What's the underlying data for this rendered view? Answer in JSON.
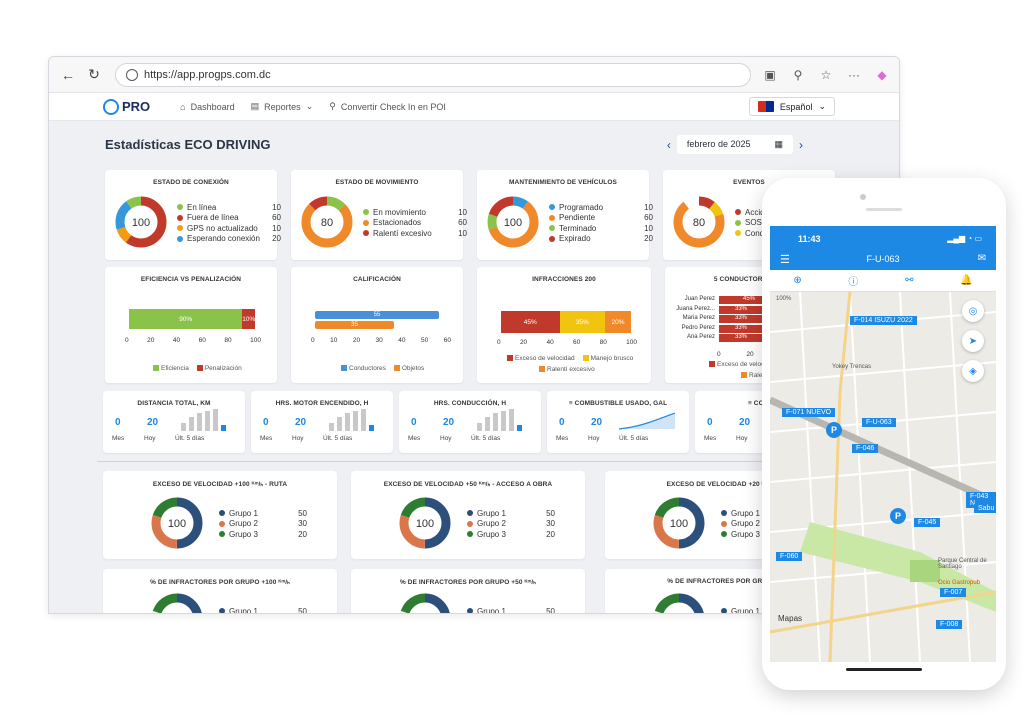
{
  "browser": {
    "url": "https://app.progps.com.dc"
  },
  "appbar": {
    "logo": "PRO",
    "menu": [
      "Dashboard",
      "Reportes",
      "Convertir Check In en POI"
    ],
    "language": "Español"
  },
  "page": {
    "title": "Estadísticas ECO DRIVING",
    "date": "febrero de 2025"
  },
  "donut_cards": [
    {
      "title": "ESTADO DE CONEXIÓN",
      "center": "100",
      "items": [
        {
          "label": "En línea",
          "value": "10",
          "color": "#8bc34a"
        },
        {
          "label": "Fuera de línea",
          "value": "60",
          "color": "#c0392b"
        },
        {
          "label": "GPS no actualizado",
          "value": "10",
          "color": "#f39c12"
        },
        {
          "label": "Esperando conexión",
          "value": "20",
          "color": "#3498db"
        }
      ]
    },
    {
      "title": "ESTADO DE MOVIMIENTO",
      "center": "80",
      "items": [
        {
          "label": "En movimiento",
          "value": "10",
          "color": "#8bc34a"
        },
        {
          "label": "Estacionados",
          "value": "60",
          "color": "#f0892a"
        },
        {
          "label": "Ralentí excesivo",
          "value": "10",
          "color": "#c0392b"
        }
      ]
    },
    {
      "title": "MANTENIMIENTO DE VEHÍCULOS",
      "center": "100",
      "items": [
        {
          "label": "Programado",
          "value": "10",
          "color": "#3498db"
        },
        {
          "label": "Pendiente",
          "value": "60",
          "color": "#f0892a"
        },
        {
          "label": "Terminado",
          "value": "10",
          "color": "#8bc34a"
        },
        {
          "label": "Expirado",
          "value": "20",
          "color": "#c0392b"
        }
      ]
    },
    {
      "title": "EVENTOS",
      "center": "80",
      "items": [
        {
          "label": "Accide",
          "value": "",
          "color": "#c0392b"
        },
        {
          "label": "SOS",
          "value": "",
          "color": "#8bc34a"
        },
        {
          "label": "Condu",
          "value": "",
          "color": "#f1c40f"
        }
      ]
    }
  ],
  "eficiencia": {
    "title": "EFICIENCIA VS PENALIZACIÓN",
    "bar_labels": [
      "90%",
      "10%"
    ],
    "axis": [
      "0",
      "20",
      "40",
      "60",
      "80",
      "100"
    ],
    "legend": [
      "Eficiencia",
      "Penalización"
    ]
  },
  "calificacion": {
    "title": "CALIFICACIÓN",
    "bar_labels": [
      "55",
      "35"
    ],
    "axis": [
      "0",
      "10",
      "20",
      "30",
      "40",
      "50",
      "60"
    ],
    "legend": [
      "Conductores",
      "Objetos"
    ]
  },
  "infracciones": {
    "title": "INFRACCIONES 200",
    "bar_labels": [
      "45%",
      "35%",
      "20%"
    ],
    "axis": [
      "0",
      "20",
      "40",
      "60",
      "80",
      "100"
    ],
    "legend": [
      "Exceso de velocidad",
      "Manejo brusco",
      "Ralentí excesivo"
    ]
  },
  "top_conductores": {
    "title": "5 CONDUCTORES CON",
    "names": [
      "Juan Perez",
      "Juana Perez...",
      "Maria Perez",
      "Pedro Perez",
      "Ana Perez"
    ],
    "values": [
      "45%",
      "33%",
      "33%",
      "33%",
      "33%"
    ],
    "axis": [
      "0",
      "20",
      "4"
    ],
    "legend": [
      "Exceso de velocid",
      "Ralent"
    ]
  },
  "stat_cards": [
    {
      "title": "DISTANCIA TOTAL, KM",
      "mes": "0",
      "hoy": "20"
    },
    {
      "title": "HRS. MOTOR ENCENDIDO, H",
      "mes": "0",
      "hoy": "20"
    },
    {
      "title": "HRS. CONDUCCIÓN, H",
      "mes": "0",
      "hoy": "20"
    },
    {
      "title": "≡ COMBUSTIBLE USADO, GAL",
      "mes": "0",
      "hoy": "20"
    },
    {
      "title": "≡ COSTO C",
      "mes": "0",
      "hoy": "20"
    }
  ],
  "stat_labels": {
    "mes": "Mes",
    "hoy": "Hoy",
    "ult": "Últ. 5 días"
  },
  "group_cards": [
    {
      "title": "EXCESO DE VELOCIDAD +100 ᴷᵐ/ₕ - RUTA",
      "center": "100"
    },
    {
      "title": "EXCESO DE VELOCIDAD +50 ᴷᵐ/ₕ - ACCESO A OBRA",
      "center": "100"
    },
    {
      "title": "EXCESO DE VELOCIDAD +20 ᴷᵐ/ₕ -",
      "center": "100"
    }
  ],
  "groups": [
    {
      "label": "Grupo 1",
      "value": "50",
      "color": "#2c4f7c"
    },
    {
      "label": "Grupo 2",
      "value": "30",
      "color": "#d9774a"
    },
    {
      "label": "Grupo 3",
      "value": "20",
      "color": "#2e7d32"
    }
  ],
  "infractor_cards": [
    {
      "title": "% DE INFRACTORES POR GRUPO +100 ᴷᵐ/ₕ"
    },
    {
      "title": "% DE INFRACTORES POR GRUPO +50 ᴷᵐ/ₕ"
    },
    {
      "title": "% DE INFRACTORES POR GRUPO"
    }
  ],
  "phone": {
    "time": "11:43",
    "title": "F-U-063",
    "vehicles": [
      "F-014 ISUZU 2022",
      "F-071 NUEVO",
      "F-U-063",
      "F-046",
      "F-045",
      "F-043 N",
      "Sabu",
      "F-060",
      "F-007",
      "F-008"
    ],
    "map_labels": [
      "Yokey Trencas",
      "Parque Central de Santiago",
      "Ocio Gastropub",
      "Mapas"
    ],
    "scale": "100%",
    "parking": "P"
  }
}
